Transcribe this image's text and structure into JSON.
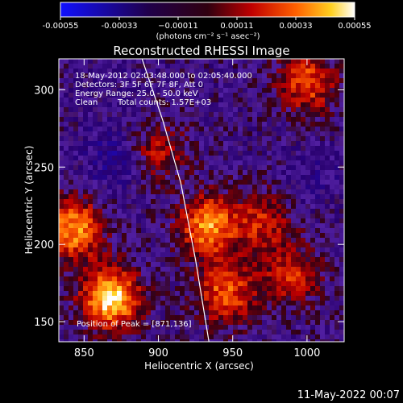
{
  "chart_data": {
    "type": "heatmap",
    "title": "Reconstructed RHESSI Image",
    "xlabel": "Heliocentric X (arcsec)",
    "ylabel": "Heliocentric Y (arcsec)",
    "xlim": [
      833,
      1025
    ],
    "ylim": [
      137,
      320
    ],
    "x_ticks": [
      850,
      900,
      950,
      1000
    ],
    "y_ticks": [
      150,
      200,
      250,
      300
    ],
    "colorbar": {
      "range": [
        -0.00055,
        0.00055
      ],
      "tick_values": [
        -0.00055,
        -0.00033,
        -0.00011,
        0.00011,
        0.00033,
        0.00055
      ],
      "tick_labels": [
        "-0.00055",
        "-0.00033",
        "−0.00011",
        "0.00011",
        "0.00033",
        "0.00055"
      ],
      "unit_label": "(photons cm⁻² s⁻¹ asec⁻²)",
      "colors": [
        "#0000ff",
        "#000000",
        "#ff0000",
        "#ffff00",
        "#ffffff"
      ]
    },
    "annotations": [
      "18-May-2012 02:03:48.000 to 02:05:40.000",
      "Detectors: 3F 5F 6F 7F 8F, Att 0",
      "Energy Range: 25.0 - 50.0 keV",
      "Clean",
      "Total counts: 1.57E+03"
    ],
    "peak_label": "Position of Peak = [871,136]",
    "limb_curve": {
      "x": [
        889,
        903,
        915,
        925,
        934
      ],
      "y": [
        320,
        280,
        240,
        190,
        137
      ]
    },
    "hot_regions": [
      {
        "x": 868,
        "y": 165,
        "value": 0.00052
      },
      {
        "x": 842,
        "y": 210,
        "value": 0.0004
      },
      {
        "x": 933,
        "y": 212,
        "value": 0.00038
      },
      {
        "x": 945,
        "y": 168,
        "value": 0.0003
      },
      {
        "x": 1000,
        "y": 305,
        "value": 0.00028
      },
      {
        "x": 970,
        "y": 215,
        "value": 0.00018
      },
      {
        "x": 990,
        "y": 180,
        "value": 0.0002
      },
      {
        "x": 900,
        "y": 260,
        "value": 0.00015
      }
    ],
    "cold_regions": [
      {
        "x": 870,
        "y": 255,
        "value": -0.00028
      },
      {
        "x": 1005,
        "y": 245,
        "value": -0.0002
      },
      {
        "x": 870,
        "y": 300,
        "value": -0.00015
      }
    ],
    "background_value": -0.00011,
    "footer_timestamp": "11-May-2022 00:07"
  }
}
